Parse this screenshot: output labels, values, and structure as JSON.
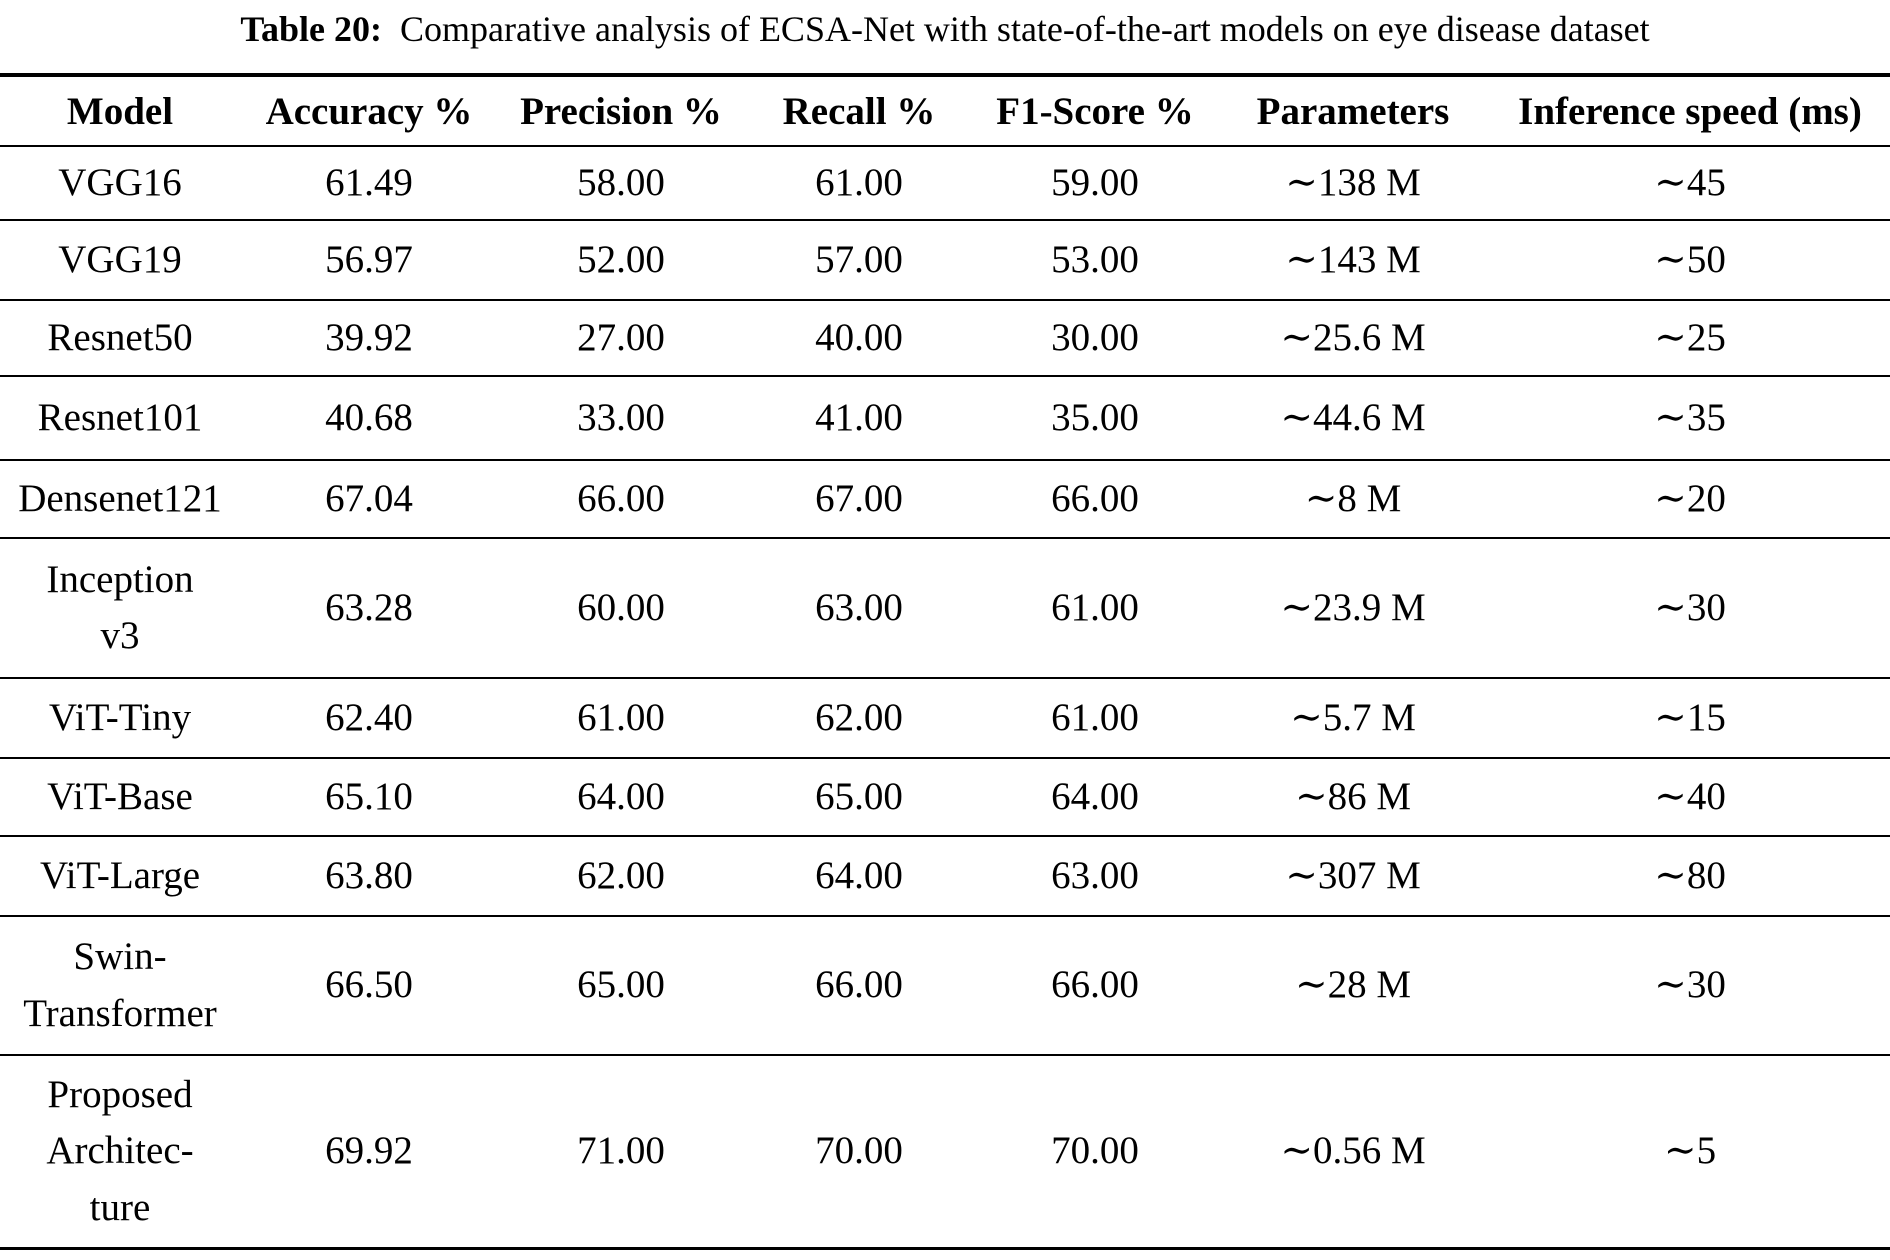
{
  "title": {
    "label": "Table 20:",
    "text": "Comparative analysis of ECSA-Net with state-of-the-art models on eye disease dataset"
  },
  "table": {
    "headers": [
      "Model",
      "Accuracy %",
      "Precision %",
      "Recall %",
      "F1-Score %",
      "Parameters",
      "Inference speed (ms)"
    ],
    "rows": [
      {
        "model": "VGG16",
        "accuracy": "61.49",
        "precision": "58.00",
        "recall": "61.00",
        "f1_score": "59.00",
        "parameters": "∼138 M",
        "inference_speed": "∼45"
      },
      {
        "model": "VGG19",
        "accuracy": "56.97",
        "precision": "52.00",
        "recall": "57.00",
        "f1_score": "53.00",
        "parameters": "∼143 M",
        "inference_speed": "∼50"
      },
      {
        "model": "Resnet50",
        "accuracy": "39.92",
        "precision": "27.00",
        "recall": "40.00",
        "f1_score": "30.00",
        "parameters": "∼25.6 M",
        "inference_speed": "∼25"
      },
      {
        "model": "Resnet101",
        "accuracy": "40.68",
        "precision": "33.00",
        "recall": "41.00",
        "f1_score": "35.00",
        "parameters": "∼44.6 M",
        "inference_speed": "∼35"
      },
      {
        "model": "Densenet121",
        "accuracy": "67.04",
        "precision": "66.00",
        "recall": "67.00",
        "f1_score": "66.00",
        "parameters": "∼8 M",
        "inference_speed": "∼20"
      },
      {
        "model": "Inception\nv3",
        "accuracy": "63.28",
        "precision": "60.00",
        "recall": "63.00",
        "f1_score": "61.00",
        "parameters": "∼23.9 M",
        "inference_speed": "∼30"
      },
      {
        "model": "ViT-Tiny",
        "accuracy": "62.40",
        "precision": "61.00",
        "recall": "62.00",
        "f1_score": "61.00",
        "parameters": "∼5.7 M",
        "inference_speed": "∼15"
      },
      {
        "model": "ViT-Base",
        "accuracy": "65.10",
        "precision": "64.00",
        "recall": "65.00",
        "f1_score": "64.00",
        "parameters": "∼86 M",
        "inference_speed": "∼40"
      },
      {
        "model": "ViT-Large",
        "accuracy": "63.80",
        "precision": "62.00",
        "recall": "64.00",
        "f1_score": "63.00",
        "parameters": "∼307 M",
        "inference_speed": "∼80"
      },
      {
        "model": "Swin-\nTransformer",
        "accuracy": "66.50",
        "precision": "65.00",
        "recall": "66.00",
        "f1_score": "66.00",
        "parameters": "∼28 M",
        "inference_speed": "∼30"
      },
      {
        "model": "Proposed\nArchitec-\nture",
        "accuracy": "69.92",
        "precision": "71.00",
        "recall": "70.00",
        "f1_score": "70.00",
        "parameters": "∼0.56 M",
        "inference_speed": "∼5"
      }
    ]
  }
}
